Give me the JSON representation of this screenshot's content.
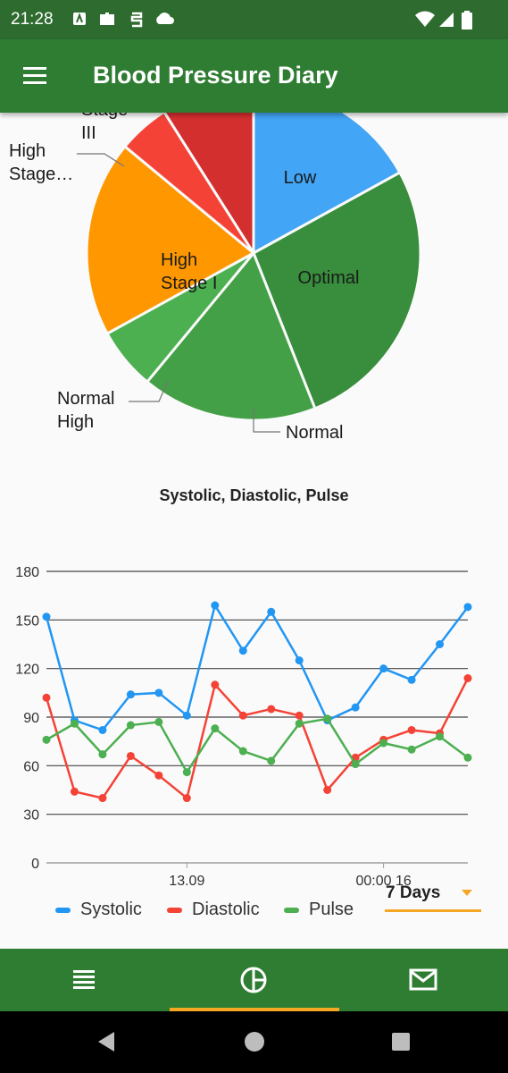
{
  "status_bar": {
    "time": "21:28"
  },
  "app_bar": {
    "title": "Blood Pressure Diary"
  },
  "pie": {
    "slices": [
      {
        "label": "Low",
        "value": 17,
        "color": "#42a5f5"
      },
      {
        "label": "Optimal",
        "value": 27,
        "color": "#388e3c"
      },
      {
        "label": "Normal",
        "value": 17,
        "color": "#43a047"
      },
      {
        "label": "Normal High",
        "value": 6,
        "color": "#4caf50"
      },
      {
        "label": "High Stage I",
        "value": 19,
        "color": "#ff9800"
      },
      {
        "label": "High Stage…",
        "value": 5,
        "color": "#f44336"
      },
      {
        "label": "Stage III",
        "value": 9,
        "color": "#d32f2f"
      }
    ]
  },
  "chart_data": {
    "type": "line",
    "title": "Systolic, Diastolic, Pulse",
    "ylim": [
      0,
      180
    ],
    "yticks": [
      "0",
      "30",
      "60",
      "90",
      "120",
      "150",
      "180"
    ],
    "xtick_labels": [
      "13.09",
      "00:00 16"
    ],
    "series": [
      {
        "name": "Systolic",
        "color": "#2196f3",
        "values": [
          152,
          88,
          82,
          104,
          105,
          91,
          159,
          131,
          155,
          125,
          88,
          96,
          120,
          113,
          135,
          158
        ]
      },
      {
        "name": "Diastolic",
        "color": "#f44336",
        "values": [
          102,
          44,
          40,
          66,
          54,
          40,
          110,
          91,
          95,
          91,
          45,
          65,
          76,
          82,
          80,
          114
        ]
      },
      {
        "name": "Pulse",
        "color": "#4caf50",
        "values": [
          76,
          86,
          67,
          85,
          87,
          56,
          83,
          69,
          63,
          86,
          89,
          61,
          74,
          70,
          78,
          65
        ]
      }
    ]
  },
  "range_select": {
    "value": "7 Days"
  }
}
